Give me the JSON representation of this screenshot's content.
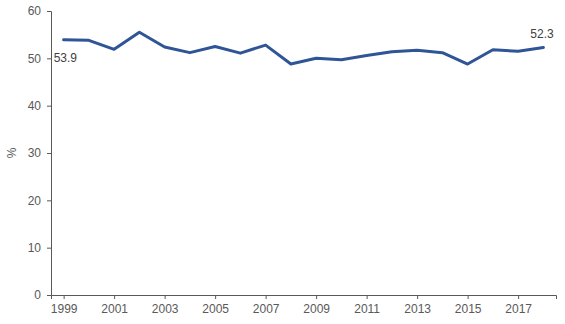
{
  "chart_data": {
    "type": "line",
    "y_label": "%",
    "x": [
      1999,
      2000,
      2001,
      2002,
      2003,
      2004,
      2005,
      2006,
      2007,
      2008,
      2009,
      2010,
      2011,
      2012,
      2013,
      2014,
      2015,
      2016,
      2017,
      2018
    ],
    "values": [
      53.9,
      53.8,
      51.9,
      55.5,
      52.4,
      51.2,
      52.5,
      51.1,
      52.8,
      48.8,
      50.0,
      49.7,
      50.6,
      51.4,
      51.7,
      51.2,
      48.8,
      51.8,
      51.5,
      52.3
    ],
    "color": "#2f5597",
    "xlim": [
      1998.5,
      2018.5
    ],
    "xticks": [
      1999,
      2001,
      2003,
      2005,
      2007,
      2009,
      2011,
      2013,
      2015,
      2017
    ],
    "ylim": [
      0,
      60
    ],
    "yticks": [
      0,
      10,
      20,
      30,
      40,
      50,
      60
    ],
    "grid": false,
    "annotations": [
      {
        "x": 1999,
        "text": "53.9"
      },
      {
        "x": 2018,
        "text": "52.3"
      }
    ]
  }
}
